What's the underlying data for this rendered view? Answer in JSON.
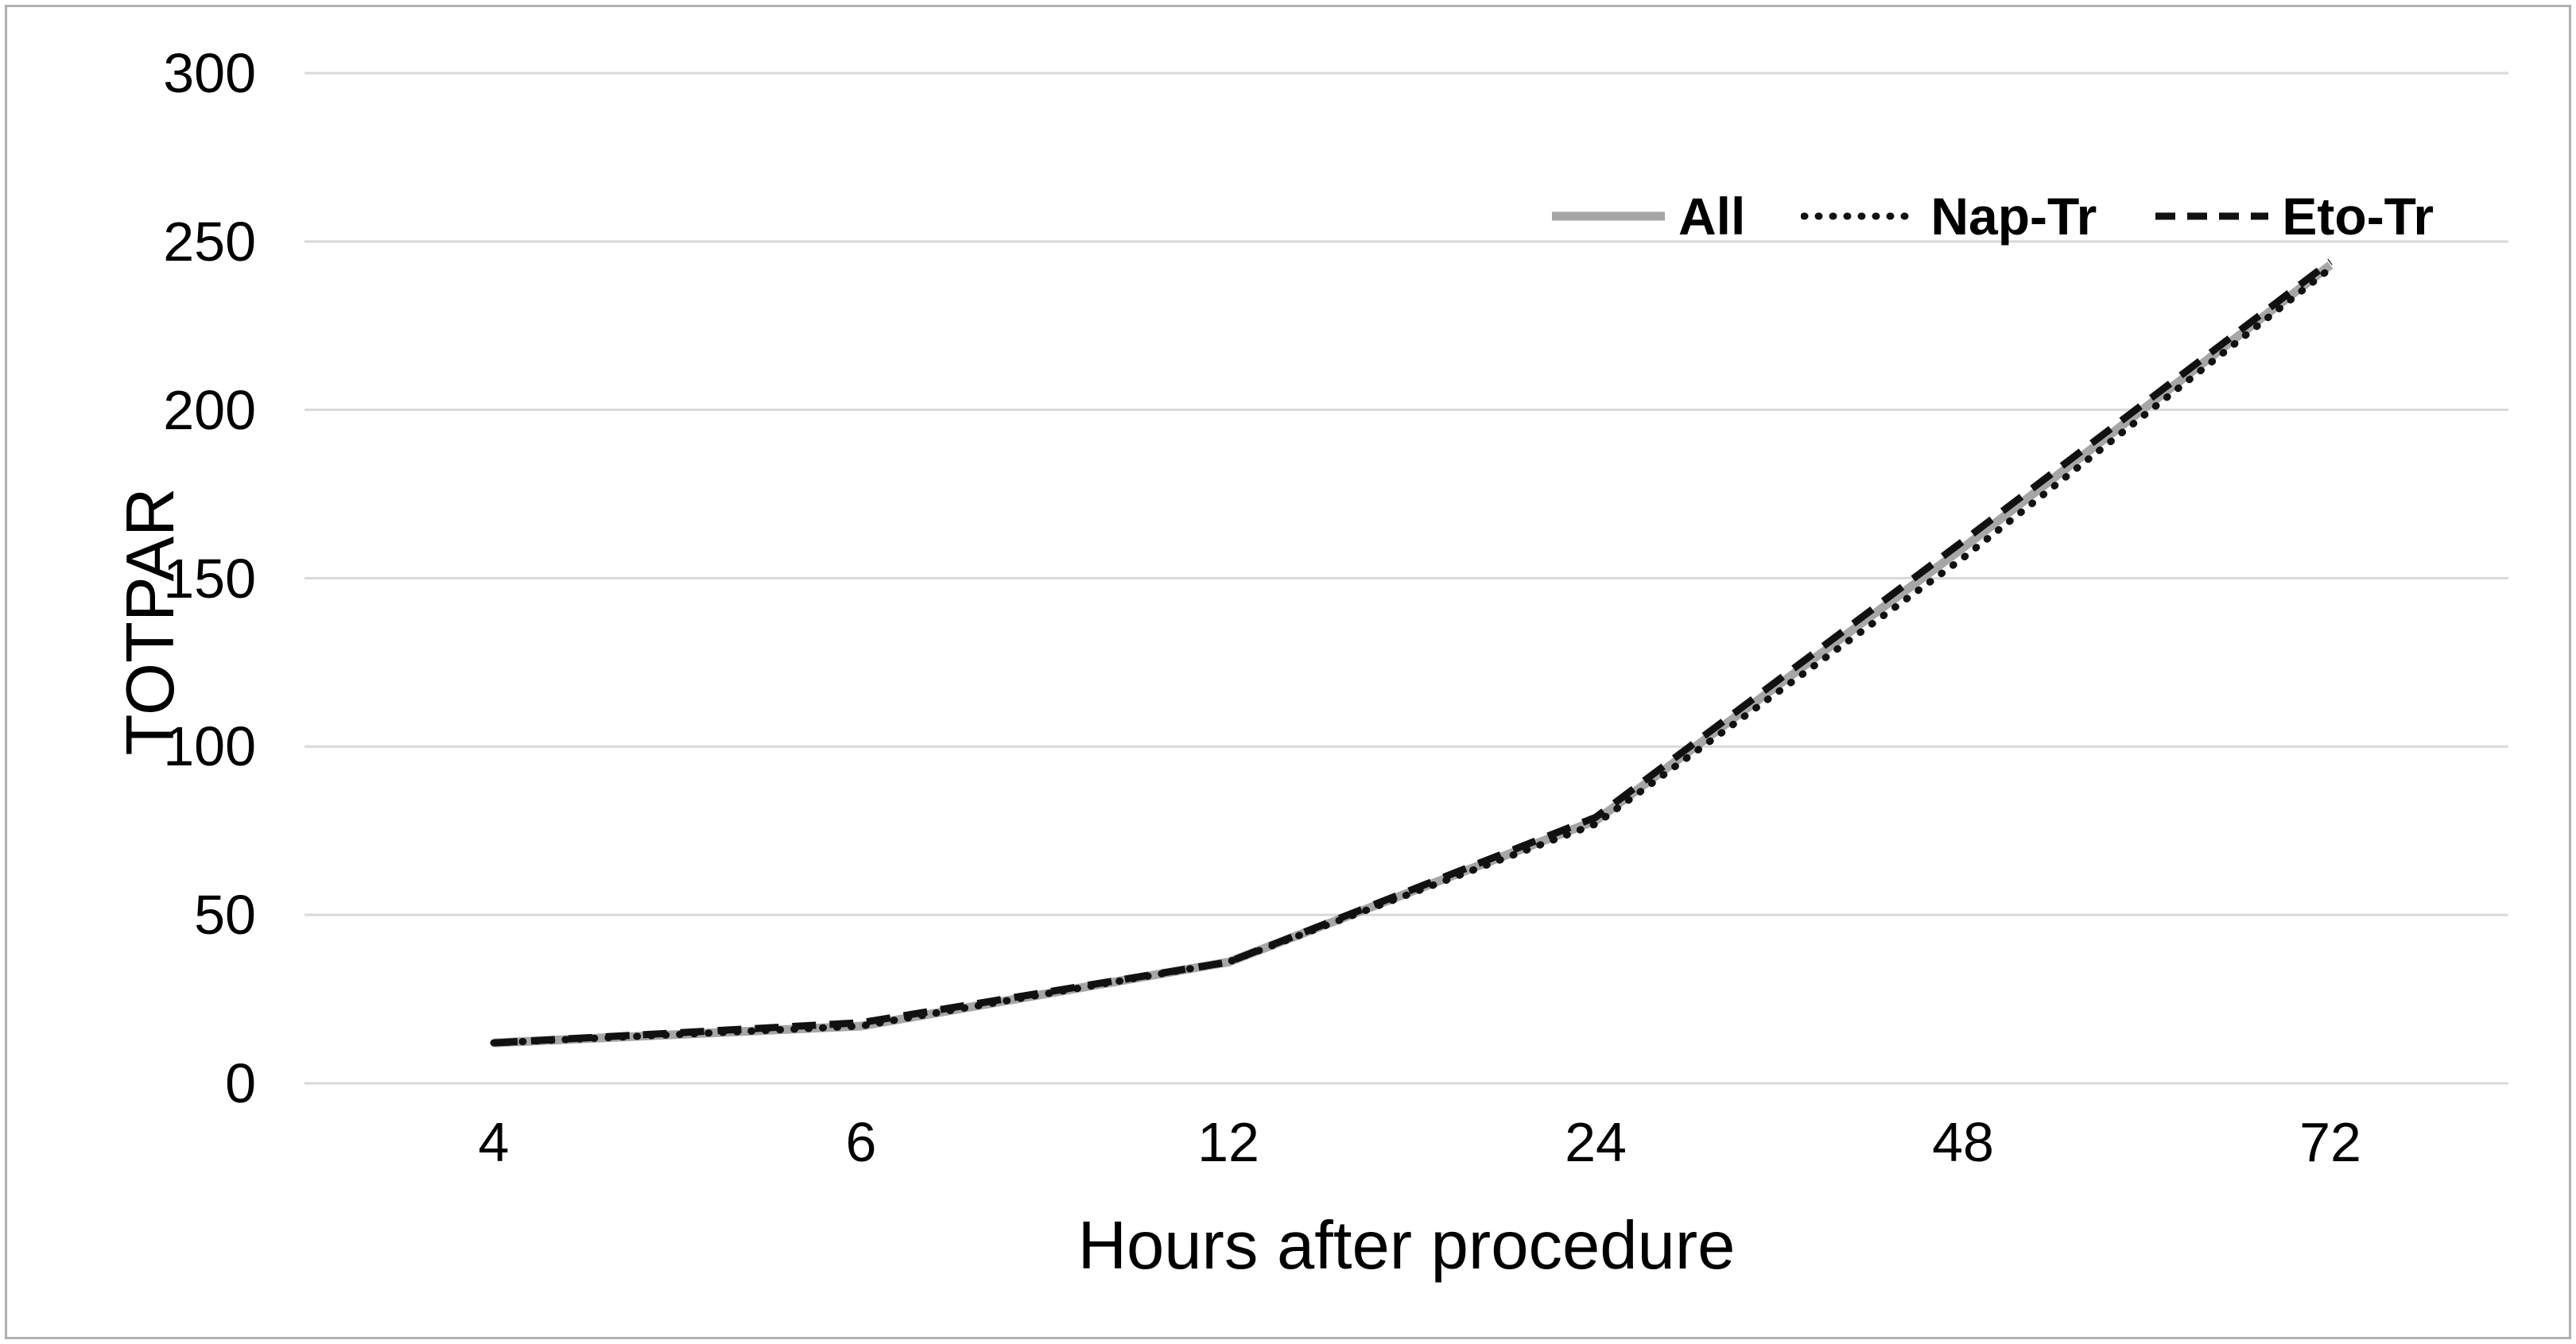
{
  "figure": {
    "background": "#ffffff",
    "border_color": "#b0b0b0"
  },
  "chart_data": {
    "type": "line",
    "title": "",
    "xlabel": "Hours after procedure",
    "ylabel": "TOTPAR",
    "categories": [
      "4",
      "6",
      "12",
      "24",
      "48",
      "72"
    ],
    "ylim": [
      0,
      300
    ],
    "yticks": [
      0,
      50,
      100,
      150,
      200,
      250,
      300
    ],
    "grid": "horizontal-only",
    "gridline_color": "#d9d9d9",
    "text_color": "#000000",
    "legend_position": "top-right-inside",
    "series": [
      {
        "name": "All",
        "line_style": "solid",
        "color": "#a6a6a6",
        "values": [
          12,
          17,
          36,
          78,
          159,
          243
        ]
      },
      {
        "name": "Nap-Tr",
        "line_style": "dotted",
        "color": "#111111",
        "values": [
          12,
          17,
          36,
          77,
          156,
          242
        ]
      },
      {
        "name": "Eto-Tr",
        "line_style": "dashed",
        "color": "#111111",
        "values": [
          12,
          18,
          36,
          79,
          161,
          244
        ]
      }
    ]
  }
}
